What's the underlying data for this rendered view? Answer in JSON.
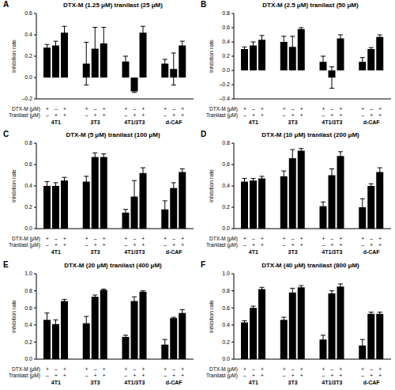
{
  "chart_data": [
    {
      "type": "bar",
      "label": "A",
      "title": "DTX-M (1.25 μM) tranilast (25 μM)",
      "y_label": "Inhibition rate",
      "row_labels": [
        "DTX-M (μM)",
        "Tranilast (μM)"
      ],
      "categories": [
        "4T1",
        "3T3",
        "4T1/3T3",
        "d-CAF"
      ],
      "ylim": [
        -0.2,
        0.6
      ],
      "yticks": [
        {
          "value": -0.2,
          "label": "–0.2"
        },
        {
          "value": 0,
          "label": "0.0"
        },
        0.2,
        0.4,
        0.6
      ],
      "grid": false,
      "series": [
        {
          "signs": [
            "+",
            "–"
          ],
          "color": "#000000",
          "values": [
            0.28,
            0.13,
            0.15,
            0.13
          ],
          "errors": [
            0.03,
            0.2,
            0.05,
            0.04
          ]
        },
        {
          "signs": [
            "–",
            "+"
          ],
          "color": "#000000",
          "values": [
            0.3,
            0.27,
            -0.13,
            0.08
          ],
          "errors": [
            0.04,
            0.2,
            0.01,
            0.15
          ]
        },
        {
          "signs": [
            "+",
            "+"
          ],
          "color": "#000000",
          "values": [
            0.42,
            0.32,
            0.42,
            0.3
          ],
          "errors": [
            0.06,
            0.15,
            0.06,
            0.04
          ]
        }
      ]
    },
    {
      "type": "bar",
      "label": "B",
      "title": "DTX-M (2.5 μM) tranilast (50 μM)",
      "y_label": "Inhibition rate",
      "row_labels": [
        "DTX-M (μM)",
        "Tranilast (μM)"
      ],
      "categories": [
        "4T1",
        "3T3",
        "4T1/3T3",
        "d-CAF"
      ],
      "ylim": [
        -0.4,
        0.8
      ],
      "yticks": [
        {
          "value": -0.4,
          "label": "–0.4"
        },
        {
          "value": -0.2,
          "label": "–0.2"
        },
        {
          "value": 0,
          "label": "0.0"
        },
        0.2,
        0.4,
        0.6,
        0.8
      ],
      "grid": false,
      "series": [
        {
          "signs": [
            "+",
            "–"
          ],
          "color": "#000000",
          "values": [
            0.3,
            0.4,
            0.12,
            0.12
          ],
          "errors": [
            0.03,
            0.08,
            0.08,
            0.06
          ]
        },
        {
          "signs": [
            "–",
            "+"
          ],
          "color": "#000000",
          "values": [
            0.35,
            0.33,
            -0.1,
            0.3
          ],
          "errors": [
            0.05,
            0.15,
            0.15,
            0.02
          ]
        },
        {
          "signs": [
            "+",
            "+"
          ],
          "color": "#000000",
          "values": [
            0.43,
            0.58,
            0.45,
            0.47
          ],
          "errors": [
            0.06,
            0.02,
            0.05,
            0.03
          ]
        }
      ]
    },
    {
      "type": "bar",
      "label": "C",
      "title": "DTX-M (5 μM) tranilast (100 μM)",
      "y_label": "Inhibition rate",
      "row_labels": [
        "DTX-M (μM)",
        "Tranilast (μM)"
      ],
      "categories": [
        "4T1",
        "3T3",
        "4T1/3T3",
        "d-CAF"
      ],
      "ylim": [
        0,
        0.8
      ],
      "yticks": [
        {
          "value": 0,
          "label": "0.0"
        },
        0.2,
        0.4,
        0.6,
        0.8
      ],
      "grid": false,
      "series": [
        {
          "signs": [
            "+",
            "–"
          ],
          "color": "#000000",
          "values": [
            0.4,
            0.44,
            0.15,
            0.18
          ],
          "errors": [
            0.04,
            0.05,
            0.03,
            0.08
          ]
        },
        {
          "signs": [
            "–",
            "+"
          ],
          "color": "#000000",
          "values": [
            0.4,
            0.67,
            0.3,
            0.38
          ],
          "errors": [
            0.03,
            0.04,
            0.15,
            0.05
          ]
        },
        {
          "signs": [
            "+",
            "+"
          ],
          "color": "#000000",
          "values": [
            0.45,
            0.67,
            0.52,
            0.53
          ],
          "errors": [
            0.03,
            0.03,
            0.05,
            0.03
          ]
        }
      ]
    },
    {
      "type": "bar",
      "label": "D",
      "title": "DTX-M (10 μM) tranilast (200 μM)",
      "y_label": "Inhibition rate",
      "row_labels": [
        "DTX-M (μM)",
        "Tranilast (μM)"
      ],
      "categories": [
        "4T1",
        "3T3",
        "4T1/3T3",
        "d-CAF"
      ],
      "ylim": [
        0,
        0.8
      ],
      "yticks": [
        {
          "value": 0,
          "label": "0.0"
        },
        0.2,
        0.4,
        0.6,
        0.8
      ],
      "grid": false,
      "series": [
        {
          "signs": [
            "+",
            "–"
          ],
          "color": "#000000",
          "values": [
            0.44,
            0.49,
            0.21,
            0.2
          ],
          "errors": [
            0.03,
            0.05,
            0.04,
            0.08
          ]
        },
        {
          "signs": [
            "–",
            "+"
          ],
          "color": "#000000",
          "values": [
            0.45,
            0.66,
            0.5,
            0.4
          ],
          "errors": [
            0.02,
            0.08,
            0.06,
            0.02
          ]
        },
        {
          "signs": [
            "+",
            "+"
          ],
          "color": "#000000",
          "values": [
            0.47,
            0.73,
            0.68,
            0.53
          ],
          "errors": [
            0.02,
            0.02,
            0.04,
            0.04
          ]
        }
      ]
    },
    {
      "type": "bar",
      "label": "E",
      "title": "DTX-M (20 μM) tranilast (400 μM)",
      "y_label": "Inhibition rate",
      "row_labels": [
        "DTX-M (μM)",
        "Tranilast (μM)"
      ],
      "categories": [
        "4T1",
        "3T3",
        "4T1/3T3",
        "d-CAF"
      ],
      "ylim": [
        0,
        1
      ],
      "yticks": [
        {
          "value": 0,
          "label": "0.0"
        },
        0.2,
        0.4,
        0.6,
        0.8,
        {
          "value": 1,
          "label": "1.0"
        }
      ],
      "grid": false,
      "series": [
        {
          "signs": [
            "+",
            "–"
          ],
          "color": "#000000",
          "values": [
            0.46,
            0.42,
            0.26,
            0.17
          ],
          "errors": [
            0.08,
            0.08,
            0.02,
            0.06
          ]
        },
        {
          "signs": [
            "–",
            "+"
          ],
          "color": "#000000",
          "values": [
            0.41,
            0.73,
            0.68,
            0.48
          ],
          "errors": [
            0.05,
            0.02,
            0.05,
            0.01
          ]
        },
        {
          "signs": [
            "+",
            "+"
          ],
          "color": "#000000",
          "values": [
            0.68,
            0.81,
            0.79,
            0.54
          ],
          "errors": [
            0.02,
            0.01,
            0.01,
            0.04
          ]
        }
      ]
    },
    {
      "type": "bar",
      "label": "F",
      "title": "DTX-M (40 μM) tranilast (800 μM)",
      "y_label": "Inhibition rate",
      "row_labels": [
        "DTX-M (μM)",
        "Tranilast (μM)"
      ],
      "categories": [
        "4T1",
        "3T3",
        "4T1/3T3",
        "d-CAF"
      ],
      "ylim": [
        0,
        1
      ],
      "yticks": [
        {
          "value": 0,
          "label": "0.0"
        },
        0.2,
        0.4,
        0.6,
        0.8,
        {
          "value": 1,
          "label": "1.0"
        }
      ],
      "grid": false,
      "series": [
        {
          "signs": [
            "+",
            "–"
          ],
          "color": "#000000",
          "values": [
            0.43,
            0.46,
            0.23,
            0.16
          ],
          "errors": [
            0.02,
            0.03,
            0.05,
            0.07
          ]
        },
        {
          "signs": [
            "–",
            "+"
          ],
          "color": "#000000",
          "values": [
            0.6,
            0.78,
            0.77,
            0.53
          ],
          "errors": [
            0.02,
            0.05,
            0.03,
            0.02
          ]
        },
        {
          "signs": [
            "+",
            "+"
          ],
          "color": "#000000",
          "values": [
            0.82,
            0.84,
            0.85,
            0.53
          ],
          "errors": [
            0.02,
            0.02,
            0.03,
            0.02
          ]
        }
      ]
    }
  ]
}
